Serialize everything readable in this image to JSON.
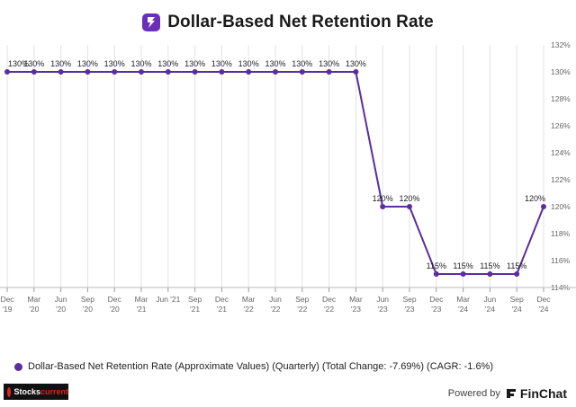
{
  "header": {
    "title": "Dollar-Based Net Retention Rate"
  },
  "legend": {
    "label": "Dollar-Based Net Retention Rate (Approximate Values) (Quarterly) (Total Change: -7.69%) (CAGR: -1.6%)"
  },
  "branding": {
    "left_prefix": "Stocks",
    "left_suffix": "current",
    "powered_by": "Powered by",
    "product": "FinChat",
    "logo_icon": "app-logo-icon"
  },
  "colors": {
    "series": "#5b2d9e",
    "grid": "#e3e3e3",
    "logo": "#6a2fb8"
  },
  "chart_data": {
    "type": "line",
    "title": "Dollar-Based Net Retention Rate",
    "xlabel": "",
    "ylabel": "",
    "x": [
      "Dec '19",
      "Mar '20",
      "Jun '20",
      "Sep '20",
      "Dec '20",
      "Mar '21",
      "Jun '21",
      "Sep '21",
      "Dec '21",
      "Mar '22",
      "Jun '22",
      "Sep '22",
      "Dec '22",
      "Mar '23",
      "Jun '23",
      "Sep '23",
      "Dec '23",
      "Mar '24",
      "Jun '24",
      "Sep '24",
      "Dec '24"
    ],
    "x_ticks": [
      [
        "Dec",
        "'19"
      ],
      [
        "Mar",
        "'20"
      ],
      [
        "Jun",
        "'20"
      ],
      [
        "Sep",
        "'20"
      ],
      [
        "Dec",
        "'20"
      ],
      [
        "Mar",
        "'21"
      ],
      [
        "Jun '21",
        ""
      ],
      [
        "Sep",
        "'21"
      ],
      [
        "Dec",
        "'21"
      ],
      [
        "Mar",
        "'22"
      ],
      [
        "Jun",
        "'22"
      ],
      [
        "Sep",
        "'22"
      ],
      [
        "Dec",
        "'22"
      ],
      [
        "Mar",
        "'23"
      ],
      [
        "Jun",
        "'23"
      ],
      [
        "Sep",
        "'23"
      ],
      [
        "Dec",
        "'23"
      ],
      [
        "Mar",
        "'24"
      ],
      [
        "Jun",
        "'24"
      ],
      [
        "Sep",
        "'24"
      ],
      [
        "Dec",
        "'24"
      ]
    ],
    "series": [
      {
        "name": "Dollar-Based Net Retention Rate (Approximate Values) (Quarterly)",
        "values": [
          130,
          130,
          130,
          130,
          130,
          130,
          130,
          130,
          130,
          130,
          130,
          130,
          130,
          130,
          120,
          120,
          115,
          115,
          115,
          115,
          120
        ],
        "labels": [
          "130%",
          "130%",
          "130%",
          "130%",
          "130%",
          "130%",
          "130%",
          "130%",
          "130%",
          "130%",
          "130%",
          "130%",
          "130%",
          "130%",
          "120%",
          "120%",
          "115%",
          "115%",
          "115%",
          "115%",
          "120%"
        ]
      }
    ],
    "y_ticks": [
      114,
      116,
      118,
      120,
      122,
      124,
      126,
      128,
      130,
      132
    ],
    "y_tick_labels": [
      "114%",
      "116%",
      "118%",
      "120%",
      "122%",
      "124%",
      "126%",
      "128%",
      "130%",
      "132%"
    ],
    "ylim": [
      114,
      132
    ],
    "grid": "vertical",
    "legend_position": "bottom-left"
  }
}
